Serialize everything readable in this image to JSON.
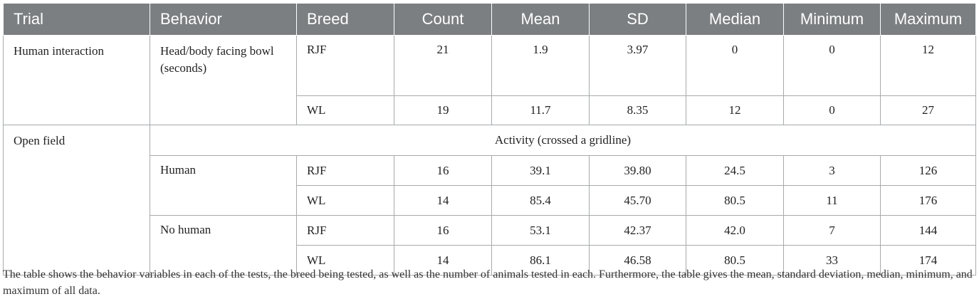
{
  "table": {
    "headers": [
      "Trial",
      "Behavior",
      "Breed",
      "Count",
      "Mean",
      "SD",
      "Median",
      "Minimum",
      "Maximum"
    ],
    "human_interaction": {
      "trial": "Human interaction",
      "behavior": "Head/body facing bowl (seconds)",
      "rows": [
        {
          "breed": "RJF",
          "count": "21",
          "mean": "1.9",
          "sd": "3.97",
          "median": "0",
          "min": "0",
          "max": "12"
        },
        {
          "breed": "WL",
          "count": "19",
          "mean": "11.7",
          "sd": "8.35",
          "median": "12",
          "min": "0",
          "max": "27"
        }
      ]
    },
    "open_field": {
      "trial": "Open field",
      "activity_label": "Activity (crossed a gridline)",
      "human": {
        "behavior": "Human",
        "rows": [
          {
            "breed": "RJF",
            "count": "16",
            "mean": "39.1",
            "sd": "39.80",
            "median": "24.5",
            "min": "3",
            "max": "126"
          },
          {
            "breed": "WL",
            "count": "14",
            "mean": "85.4",
            "sd": "45.70",
            "median": "80.5",
            "min": "11",
            "max": "176"
          }
        ]
      },
      "no_human": {
        "behavior": "No human",
        "rows": [
          {
            "breed": "RJF",
            "count": "16",
            "mean": "53.1",
            "sd": "42.37",
            "median": "42.0",
            "min": "7",
            "max": "144"
          },
          {
            "breed": "WL",
            "count": "14",
            "mean": "86.1",
            "sd": "46.58",
            "median": "80.5",
            "min": "33",
            "max": "174"
          }
        ]
      }
    }
  },
  "caption": "The table shows the behavior variables in each of the tests, the breed being tested, as well as the number of animals tested in each. Furthermore, the table gives the mean, standard deviation, median, minimum, and maximum of all data."
}
